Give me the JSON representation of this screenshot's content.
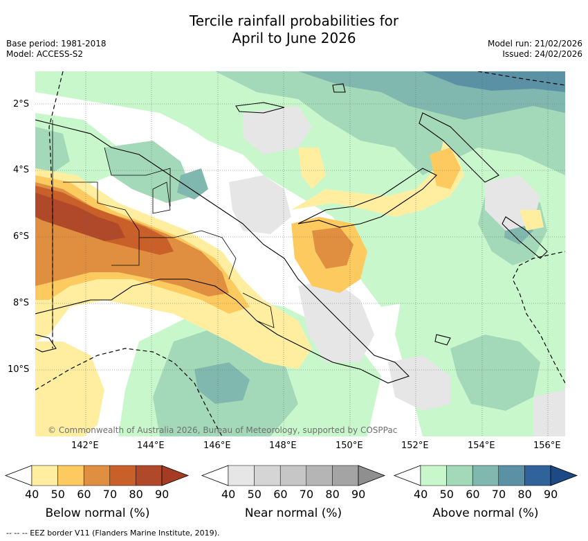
{
  "title": {
    "line1": "Tercile rainfall probabilities for",
    "line2": "April to June 2026"
  },
  "meta": {
    "base_period": "Base period: 1981-2018",
    "model": "Model: ACCESS-S2",
    "model_run": "Model run: 21/02/2026",
    "issued": "Issued: 24/02/2026"
  },
  "map": {
    "lat_ticks": [
      "2°S",
      "4°S",
      "6°S",
      "8°S",
      "10°S"
    ],
    "lon_ticks": [
      "142°E",
      "144°E",
      "146°E",
      "148°E",
      "150°E",
      "152°E",
      "154°E",
      "156°E"
    ],
    "copyright": "© Commonwealth of Australia 2026, Bureau of Meteorology, supported by COSPPac"
  },
  "colorbars": [
    {
      "name": "below",
      "label": "Below normal (%)",
      "ticks": [
        "40",
        "50",
        "60",
        "70",
        "80",
        "90"
      ],
      "colors": [
        "#ffeea0",
        "#fdca60",
        "#e08f40",
        "#c9602a",
        "#b0492a",
        "#a53b23"
      ]
    },
    {
      "name": "near",
      "label": "Near normal (%)",
      "ticks": [
        "40",
        "50",
        "60",
        "70",
        "80",
        "90"
      ],
      "colors": [
        "#e6e6e6",
        "#d5d5d5",
        "#c6c6c6",
        "#b5b5b5",
        "#a4a4a4",
        "#8f8f8f"
      ]
    },
    {
      "name": "above",
      "label": "Above normal (%)",
      "ticks": [
        "40",
        "50",
        "60",
        "70",
        "80",
        "90"
      ],
      "colors": [
        "#c9f7cc",
        "#a3d9b9",
        "#80b8b0",
        "#5b91a5",
        "#2f6399",
        "#1d4a85"
      ]
    }
  ],
  "footer": "--  --  -- EEZ border V11 (Flanders Marine Institute, 2019)."
}
